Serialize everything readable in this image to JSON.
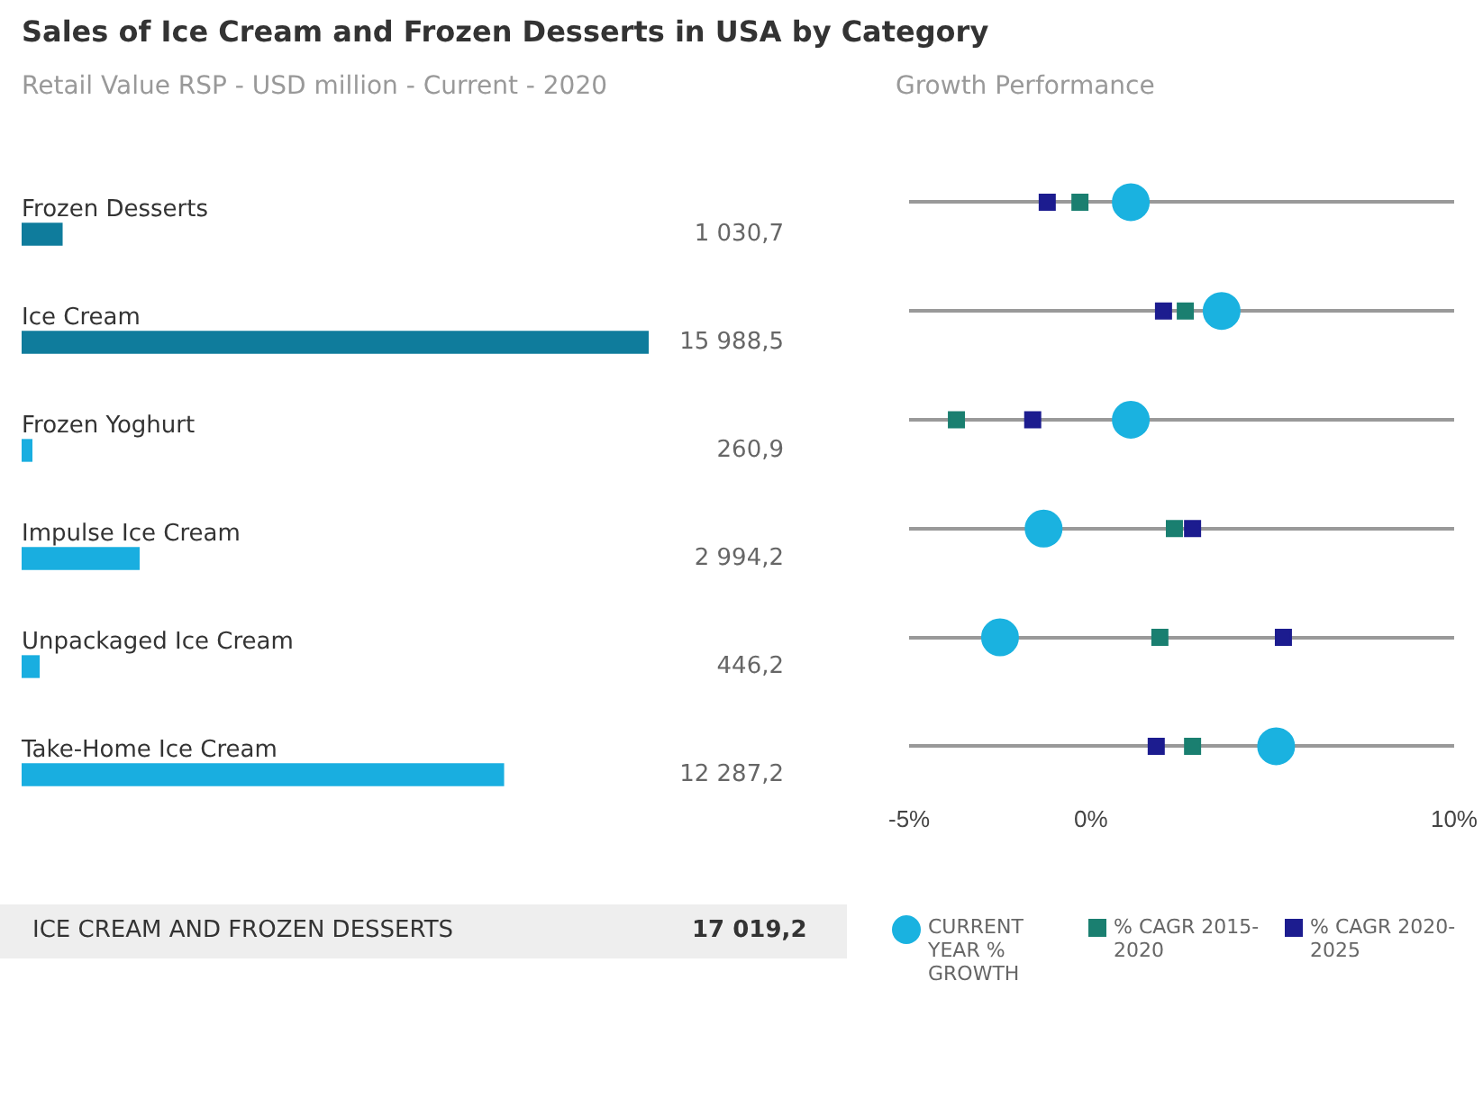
{
  "chart_data": [
    {
      "type": "bar",
      "orientation": "horizontal",
      "title": "Sales of Ice Cream and Frozen Desserts in USA by Category",
      "subtitle": "Retail Value RSP - USD million - Current - 2020",
      "categories": [
        "Frozen Desserts",
        "Ice Cream",
        "Frozen Yoghurt",
        "Impulse Ice Cream",
        "Unpackaged Ice Cream",
        "Take-Home Ice Cream"
      ],
      "values": [
        1030.7,
        15988.5,
        260.9,
        2994.2,
        446.2,
        12287.2
      ],
      "value_labels": [
        "1 030,7",
        "15 988,5",
        "260,9",
        "2 994,2",
        "446,2",
        "12 287,2"
      ],
      "colors": [
        "#0f7c9c",
        "#0f7c9c",
        "#19aee0",
        "#19aee0",
        "#19aee0",
        "#19aee0"
      ],
      "tick_labels": false,
      "annotations": [
        "ICE CREAM AND FROZEN DESSERTS",
        "17 019,2"
      ]
    },
    {
      "type": "scatter",
      "orientation": "horizontal",
      "title": "Growth Performance",
      "categories": [
        null,
        null,
        null,
        null,
        null,
        null
      ],
      "xlim": [
        -5,
        10
      ],
      "xticks": [
        {
          "value": -5,
          "label": "-5%"
        },
        {
          "value": 0,
          "label": "0%"
        },
        {
          "value": 10,
          "label": "10%"
        }
      ],
      "tick_labels": "x",
      "grid": "y",
      "legend": "bottom",
      "series": [
        {
          "name": "CURRENT YEAR % GROWTH",
          "color": "#1ab2e0",
          "marker": "circle",
          "values": [
            1.1,
            3.6,
            1.1,
            -1.3,
            -2.5,
            5.1
          ]
        },
        {
          "name": "% CAGR 2015-2020",
          "color": "#1a7f70",
          "marker": "square",
          "values": [
            -0.3,
            2.6,
            -3.7,
            2.3,
            1.9,
            2.8
          ]
        },
        {
          "name": "% CAGR 2020-2025",
          "color": "#1c1c8f",
          "marker": "square",
          "values": [
            -1.2,
            2.0,
            -1.6,
            2.8,
            5.3,
            1.8
          ]
        }
      ]
    }
  ]
}
